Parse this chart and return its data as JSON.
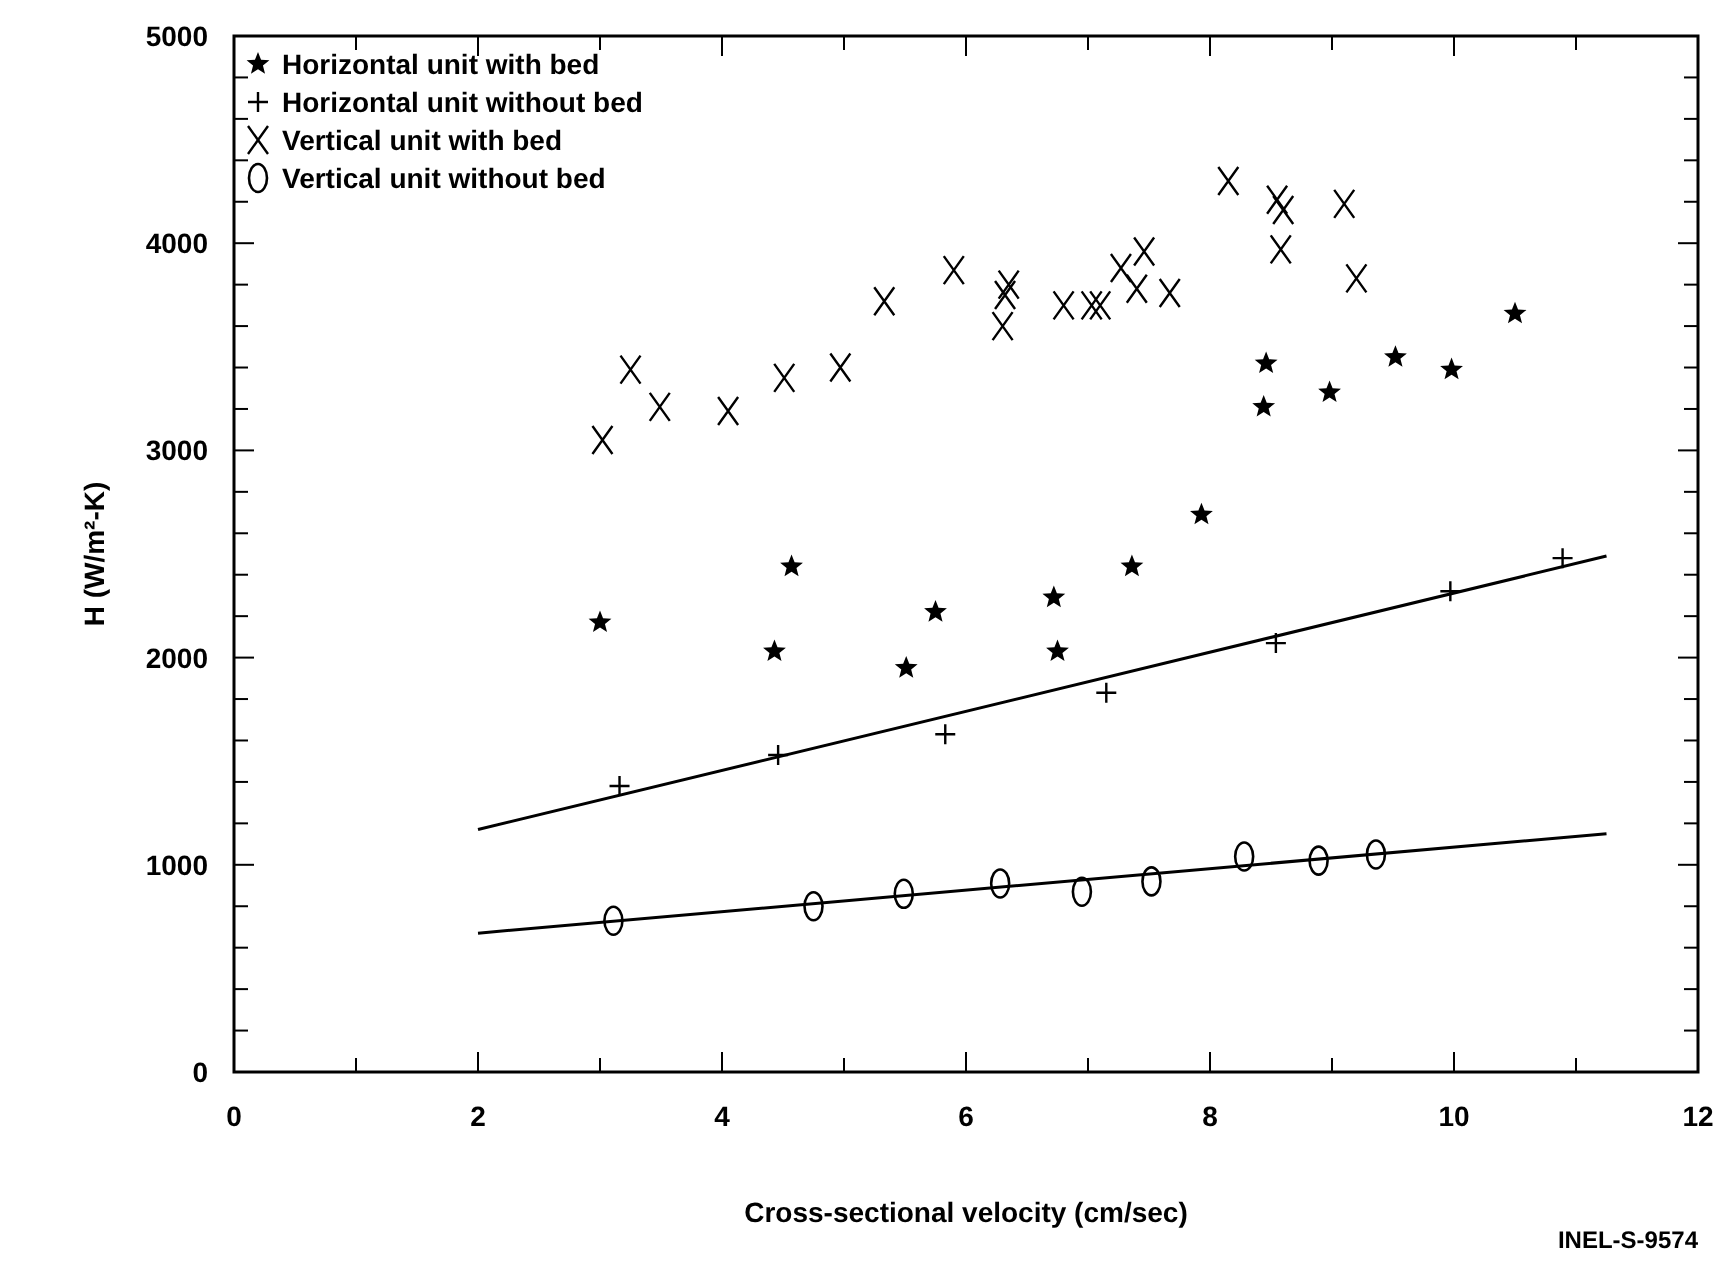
{
  "chart_data": {
    "type": "scatter",
    "xlabel": "Cross-sectional velocity (cm/sec)",
    "ylabel": "H (W/m²-K)",
    "xlim": [
      0,
      12
    ],
    "ylim": [
      0,
      5000
    ],
    "xticks": [
      0,
      {
        "value": 1,
        "label": null
      },
      2,
      {
        "value": 3,
        "label": null
      },
      4,
      {
        "value": 5,
        "label": null
      },
      6,
      {
        "value": 7,
        "label": null
      },
      8,
      {
        "value": 9,
        "label": null
      },
      10,
      {
        "value": 11,
        "label": null
      },
      12
    ],
    "yticks": [
      0,
      {
        "value": 200,
        "label": null
      },
      {
        "value": 400,
        "label": null
      },
      {
        "value": 600,
        "label": null
      },
      {
        "value": 800,
        "label": null
      },
      1000,
      {
        "value": 1200,
        "label": null
      },
      {
        "value": 1400,
        "label": null
      },
      {
        "value": 1600,
        "label": null
      },
      {
        "value": 1800,
        "label": null
      },
      2000,
      {
        "value": 2200,
        "label": null
      },
      {
        "value": 2400,
        "label": null
      },
      {
        "value": 2600,
        "label": null
      },
      {
        "value": 2800,
        "label": null
      },
      3000,
      {
        "value": 3200,
        "label": null
      },
      {
        "value": 3400,
        "label": null
      },
      {
        "value": 3600,
        "label": null
      },
      {
        "value": 3800,
        "label": null
      },
      4000,
      {
        "value": 4200,
        "label": null
      },
      {
        "value": 4400,
        "label": null
      },
      {
        "value": 4600,
        "label": null
      },
      {
        "value": 4800,
        "label": null
      },
      5000
    ],
    "grid": false,
    "legend": "top left",
    "annotations": [
      "INEL-S-9574"
    ],
    "series": [
      {
        "name": "Horizontal unit with bed",
        "color": "#000000",
        "marker": "star",
        "x": [
          3.0,
          4.43,
          4.57,
          5.51,
          5.75,
          6.72,
          6.75,
          7.36,
          7.93,
          8.44,
          8.46,
          8.98,
          9.52,
          9.98,
          10.5
        ],
        "values": [
          2170,
          2030,
          2440,
          1950,
          2220,
          2290,
          2030,
          2440,
          2690,
          3210,
          3420,
          3280,
          3450,
          3390,
          3660
        ]
      },
      {
        "name": "Horizontal unit without bed",
        "color": "#000000",
        "marker": "cross",
        "x": [
          3.16,
          4.46,
          5.83,
          7.15,
          8.54,
          9.97,
          10.89
        ],
        "values": [
          1380,
          1530,
          1630,
          1830,
          2070,
          2320,
          2480
        ]
      },
      {
        "name": "Vertical unit with bed",
        "color": "#000000",
        "marker": "x",
        "x": [
          3.02,
          3.25,
          3.49,
          4.05,
          4.51,
          4.97,
          5.33,
          5.9,
          6.3,
          6.32,
          6.35,
          6.8,
          7.03,
          7.1,
          7.27,
          7.4,
          7.46,
          7.67,
          8.15,
          8.55,
          8.6,
          8.58,
          9.1,
          9.2
        ],
        "values": [
          3050,
          3390,
          3210,
          3190,
          3350,
          3400,
          3720,
          3870,
          3600,
          3750,
          3800,
          3700,
          3700,
          3700,
          3880,
          3780,
          3960,
          3760,
          4300,
          4210,
          4160,
          3970,
          4190,
          3830
        ]
      },
      {
        "name": "Vertical unit without bed",
        "color": "#000000",
        "marker": "circle",
        "x": [
          3.11,
          4.75,
          5.49,
          6.28,
          6.95,
          7.52,
          8.28,
          8.89,
          9.36
        ],
        "values": [
          730,
          800,
          860,
          910,
          870,
          920,
          1040,
          1020,
          1050
        ]
      },
      {
        "type": "line",
        "color": "#000000",
        "marker": "none",
        "line_style": "solid",
        "x": [
          2,
          11.25
        ],
        "values": [
          1170,
          2490
        ]
      },
      {
        "type": "line",
        "color": "#000000",
        "marker": "none",
        "line_style": "solid",
        "x": [
          2,
          11.25
        ],
        "values": [
          670,
          1150
        ]
      }
    ]
  }
}
